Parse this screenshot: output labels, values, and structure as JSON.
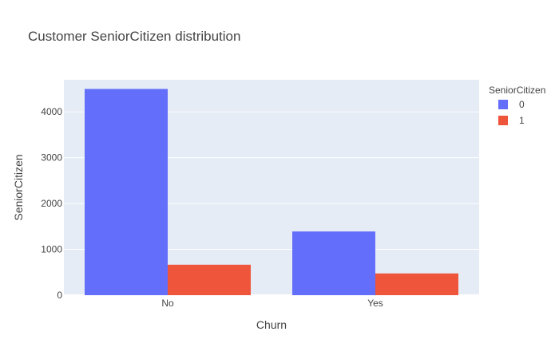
{
  "chart_data": {
    "type": "bar",
    "title": "Customer SeniorCitizen distribution",
    "xlabel": "Churn",
    "ylabel": "SeniorCitizen",
    "categories": [
      "No",
      "Yes"
    ],
    "series": [
      {
        "name": "0",
        "values": [
          4500,
          1390
        ],
        "color": "#636efa"
      },
      {
        "name": "1",
        "values": [
          665,
          475
        ],
        "color": "#ef553b"
      }
    ],
    "legend_title": "SeniorCitizen",
    "legend_position": "top-right",
    "ylim": [
      0,
      4700
    ],
    "yticks": [
      0,
      1000,
      2000,
      3000,
      4000
    ],
    "ytick_labels": [
      "0",
      "1000",
      "2000",
      "3000",
      "4000"
    ],
    "grid": true,
    "plot_background": "#e5ecf6",
    "grid_color": "#ffffff"
  }
}
